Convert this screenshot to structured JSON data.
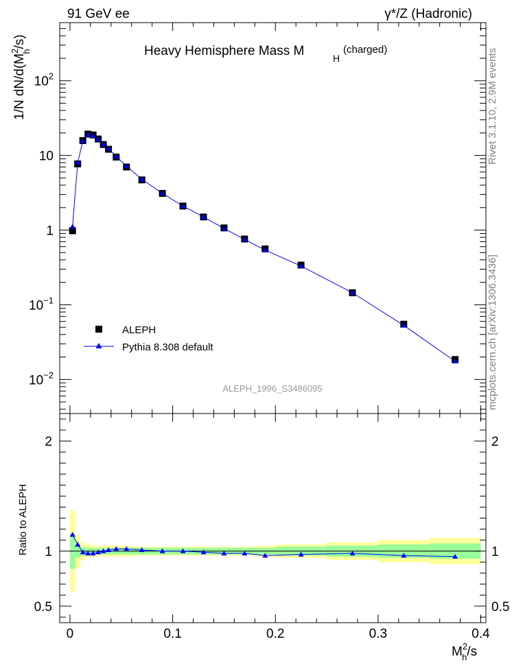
{
  "header": {
    "left": "91 GeV ee",
    "right": "γ*/Z (Hadronic)"
  },
  "title_main": "Heavy Hemisphere Mass M",
  "title_sub": "H",
  "title_suffix": "(charged)",
  "ylabel_main": "1/N dN/d(M",
  "ylabel_sup": "2",
  "ylabel_sub": "h",
  "ylabel_end": "/s)",
  "ratio_ylabel": "Ratio to ALEPH",
  "xlabel_main": "M",
  "xlabel_sup": "2",
  "xlabel_sub": "h",
  "xlabel_end": "/s",
  "analysis_id": "ALEPH_1996_S3486095",
  "side_text_top": "Rivet 3.1.10, 2.9M events",
  "side_text_bottom": "mcplots.cern.ch [arXiv:1306.3436]",
  "legend": {
    "data_label": "ALEPH",
    "mc_label": "Pythia 8.308 default"
  },
  "colors": {
    "data": "#000000",
    "mc": "#0000ff",
    "band_inner": "#99ff99",
    "band_outer": "#ffff99"
  },
  "chart_data": [
    {
      "type": "scatter",
      "panel": "main",
      "yscale": "log",
      "xlim": [
        -0.01,
        0.405
      ],
      "ylim": [
        0.0035,
        600
      ],
      "yticks": [
        {
          "v": 0.01,
          "base": "10",
          "exp": "−2"
        },
        {
          "v": 0.1,
          "base": "10",
          "exp": "−1"
        },
        {
          "v": 1,
          "base": "1",
          "exp": ""
        },
        {
          "v": 10,
          "base": "10",
          "exp": ""
        },
        {
          "v": 100,
          "base": "10",
          "exp": "2"
        }
      ],
      "x": [
        0.0025,
        0.0075,
        0.0125,
        0.0175,
        0.0225,
        0.0275,
        0.0325,
        0.0375,
        0.045,
        0.055,
        0.07,
        0.09,
        0.11,
        0.13,
        0.15,
        0.17,
        0.19,
        0.225,
        0.275,
        0.325,
        0.375
      ],
      "series": [
        {
          "name": "ALEPH",
          "values": [
            0.98,
            7.7,
            15.8,
            19.3,
            18.8,
            16.6,
            14.0,
            12.1,
            9.5,
            7.0,
            4.7,
            3.1,
            2.1,
            1.5,
            1.07,
            0.76,
            0.56,
            0.34,
            0.145,
            0.055,
            0.0185
          ]
        },
        {
          "name": "Pythia 8.308 default",
          "values": [
            1.12,
            8.0,
            15.6,
            18.9,
            18.3,
            16.5,
            14.1,
            12.3,
            9.7,
            7.2,
            4.8,
            3.1,
            2.1,
            1.5,
            1.05,
            0.75,
            0.54,
            0.33,
            0.145,
            0.053,
            0.0175
          ]
        }
      ]
    },
    {
      "type": "line",
      "panel": "ratio",
      "xlim": [
        -0.01,
        0.405
      ],
      "ylim": [
        0.35,
        2.25
      ],
      "yticks": [
        0.5,
        1,
        2
      ],
      "xticks": [
        "0",
        "0.1",
        "0.2",
        "0.3",
        "0.4"
      ],
      "xtick_values": [
        0,
        0.1,
        0.2,
        0.3,
        0.4
      ],
      "bins": [
        [
          0,
          0.005
        ],
        [
          0.005,
          0.01
        ],
        [
          0.01,
          0.015
        ],
        [
          0.015,
          0.02
        ],
        [
          0.02,
          0.025
        ],
        [
          0.025,
          0.03
        ],
        [
          0.03,
          0.035
        ],
        [
          0.035,
          0.04
        ],
        [
          0.04,
          0.05
        ],
        [
          0.05,
          0.06
        ],
        [
          0.06,
          0.08
        ],
        [
          0.08,
          0.1
        ],
        [
          0.1,
          0.12
        ],
        [
          0.12,
          0.14
        ],
        [
          0.14,
          0.16
        ],
        [
          0.16,
          0.18
        ],
        [
          0.18,
          0.2
        ],
        [
          0.2,
          0.25
        ],
        [
          0.25,
          0.3
        ],
        [
          0.3,
          0.35
        ],
        [
          0.35,
          0.4
        ]
      ],
      "band_inner": [
        0.16,
        0.06,
        0.04,
        0.03,
        0.03,
        0.03,
        0.03,
        0.03,
        0.03,
        0.03,
        0.03,
        0.03,
        0.03,
        0.03,
        0.03,
        0.03,
        0.03,
        0.04,
        0.05,
        0.06,
        0.07
      ],
      "band_outer": [
        0.37,
        0.15,
        0.08,
        0.06,
        0.05,
        0.05,
        0.05,
        0.05,
        0.05,
        0.05,
        0.04,
        0.04,
        0.04,
        0.04,
        0.04,
        0.04,
        0.05,
        0.06,
        0.08,
        0.1,
        0.12
      ],
      "x": [
        0.0025,
        0.0075,
        0.0125,
        0.0175,
        0.0225,
        0.0275,
        0.0325,
        0.0375,
        0.045,
        0.055,
        0.07,
        0.09,
        0.11,
        0.13,
        0.15,
        0.17,
        0.19,
        0.225,
        0.275,
        0.325,
        0.375
      ],
      "series": [
        {
          "name": "Pythia 8.308 default",
          "values": [
            1.15,
            1.06,
            0.99,
            0.98,
            0.98,
            0.99,
            1.0,
            1.01,
            1.02,
            1.02,
            1.01,
            1.0,
            1.0,
            0.99,
            0.98,
            0.98,
            0.96,
            0.97,
            0.98,
            0.96,
            0.95
          ]
        }
      ]
    }
  ]
}
